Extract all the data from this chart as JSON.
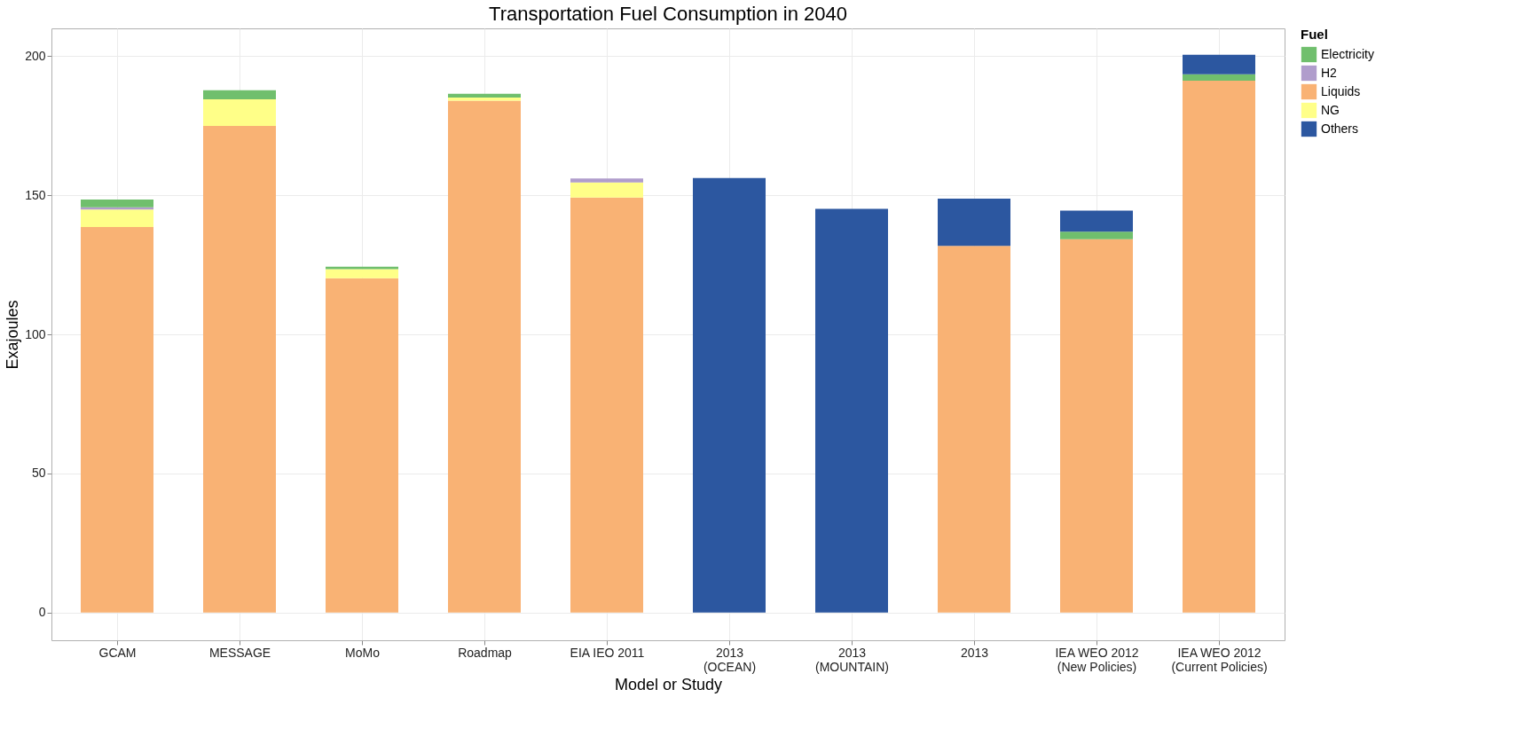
{
  "chart_data": {
    "type": "bar",
    "stacked": true,
    "title": "Transportation Fuel Consumption in 2040",
    "xlabel": "Model or Study",
    "ylabel": "Exajoules",
    "legend_title": "Fuel",
    "legend": "right",
    "grid": true,
    "categories": [
      "GCAM",
      "MESSAGE",
      "MoMo",
      "Roadmap",
      "EIA IEO 2011",
      "2013\n(OCEAN)",
      "2013\n(MOUNTAIN)",
      "2013",
      "IEA WEO 2012\n(New Policies)",
      "IEA WEO 2012\n(Current Policies)"
    ],
    "series": [
      {
        "name": "Liquids",
        "color": "#f9b274",
        "values": [
          138.6,
          174.9,
          120.2,
          184.0,
          149.2,
          null,
          null,
          131.8,
          134.2,
          191.2
        ]
      },
      {
        "name": "NG",
        "color": "#ffff88",
        "values": [
          6.3,
          9.6,
          3.2,
          1.1,
          5.4,
          null,
          null,
          null,
          null,
          null
        ]
      },
      {
        "name": "H2",
        "color": "#b09dcc",
        "values": [
          0.8,
          null,
          null,
          null,
          1.4,
          null,
          null,
          null,
          null,
          null
        ]
      },
      {
        "name": "Electricity",
        "color": "#70bf6d",
        "values": [
          2.8,
          3.3,
          0.9,
          1.4,
          null,
          null,
          null,
          null,
          2.7,
          2.3
        ]
      },
      {
        "name": "Others",
        "color": "#2c57a0",
        "values": [
          null,
          null,
          null,
          null,
          null,
          156.2,
          145.1,
          17.0,
          7.6,
          7.0
        ]
      }
    ],
    "ylim": [
      -10,
      210
    ],
    "yticks": [
      0,
      50,
      100,
      150,
      200
    ]
  }
}
